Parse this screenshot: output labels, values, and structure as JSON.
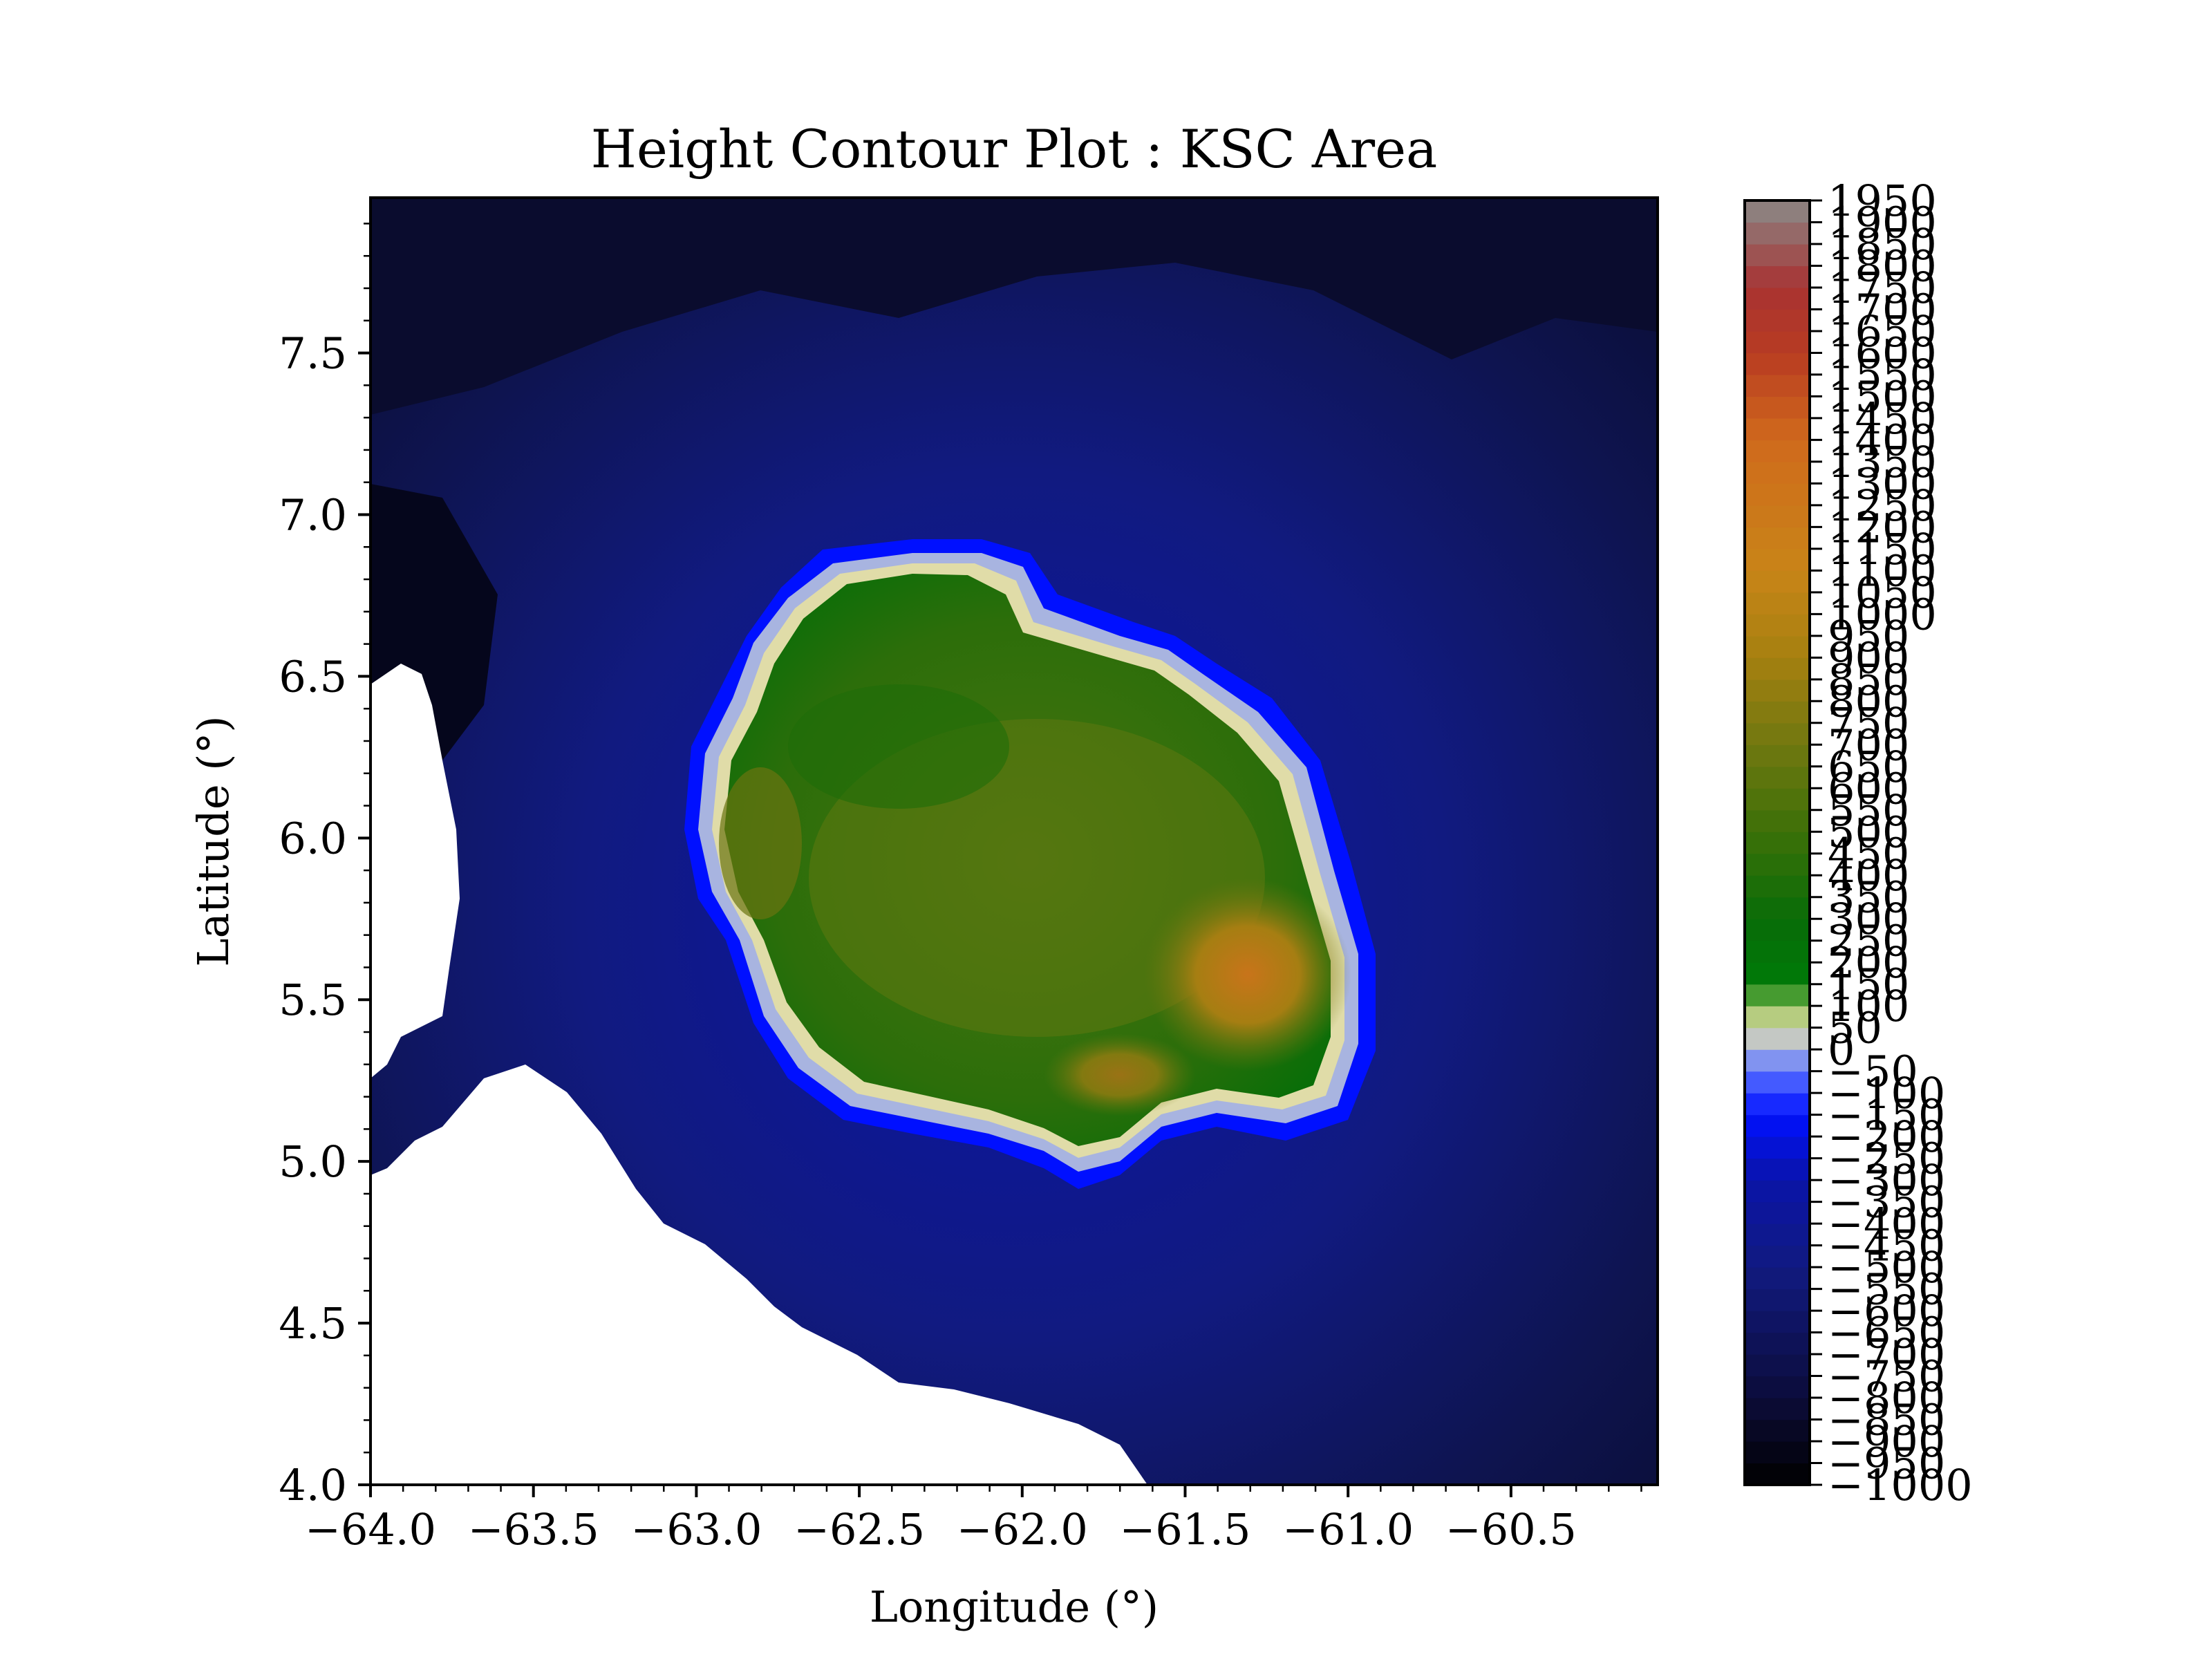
{
  "chart_data": {
    "type": "heatmap",
    "subtype": "filled-contour",
    "title": "Height Contour Plot : KSC Area",
    "xlabel": "Longitude (°)",
    "ylabel": "Latitude (°)",
    "xlim": [
      -64.0,
      -60.05
    ],
    "ylim": [
      4.0,
      7.98
    ],
    "x_ticks": [
      -64.0,
      -63.5,
      -63.0,
      -62.5,
      -62.0,
      -61.5,
      -61.0,
      -60.5
    ],
    "x_tick_labels": [
      "−64.0",
      "−63.5",
      "−63.0",
      "−62.5",
      "−62.0",
      "−61.5",
      "−61.0",
      "−60.5"
    ],
    "y_ticks": [
      4.0,
      4.5,
      5.0,
      5.5,
      6.0,
      6.5,
      7.0,
      7.5
    ],
    "y_tick_labels": [
      "4.0",
      "4.5",
      "5.0",
      "5.5",
      "6.0",
      "6.5",
      "7.0",
      "7.5"
    ],
    "colorbar": {
      "min": -1000,
      "max": 1950,
      "levels": [
        -1000,
        -950,
        -900,
        -850,
        -800,
        -750,
        -700,
        -650,
        -600,
        -550,
        -500,
        -450,
        -400,
        -350,
        -300,
        -250,
        -200,
        -150,
        -100,
        -50,
        0,
        50,
        100,
        150,
        200,
        250,
        300,
        350,
        400,
        450,
        500,
        550,
        600,
        650,
        700,
        750,
        800,
        850,
        900,
        950,
        1000,
        1050,
        1100,
        1150,
        1200,
        1250,
        1300,
        1350,
        1400,
        1450,
        1500,
        1550,
        1600,
        1650,
        1700,
        1750,
        1800,
        1850,
        1900,
        1950
      ],
      "tick_labels": [
        "−1000",
        "−950",
        "−900",
        "−850",
        "−800",
        "−750",
        "−700",
        "−650",
        "−600",
        "−550",
        "−500",
        "−450",
        "−400",
        "−350",
        "−300",
        "−250",
        "−200",
        "−150",
        "−100",
        "−50",
        "0",
        "50",
        "100",
        "150",
        "200",
        "250",
        "300",
        "350",
        "400",
        "450",
        "500",
        "550",
        "600",
        "650",
        "700",
        "750",
        "800",
        "850",
        "900",
        "950",
        "1000",
        "1050",
        "1100",
        "1150",
        "1200",
        "1250",
        "1300",
        "1350",
        "1400",
        "1450",
        "1500",
        "1550",
        "1600",
        "1650",
        "1700",
        "1750",
        "1800",
        "1850",
        "1900",
        "1950"
      ],
      "colormap_stops": [
        {
          "value": -1000,
          "color": "#000000"
        },
        {
          "value": -800,
          "color": "#0c0c3a"
        },
        {
          "value": -500,
          "color": "#111a80"
        },
        {
          "value": -300,
          "color": "#0a14a8"
        },
        {
          "value": -150,
          "color": "#0010ff"
        },
        {
          "value": -50,
          "color": "#5a72ff"
        },
        {
          "value": 0,
          "color": "#a8b4e0"
        },
        {
          "value": 50,
          "color": "#e0dca8"
        },
        {
          "value": 100,
          "color": "#8cbc58"
        },
        {
          "value": 150,
          "color": "#007a08"
        },
        {
          "value": 300,
          "color": "#086c08"
        },
        {
          "value": 500,
          "color": "#3c7008"
        },
        {
          "value": 700,
          "color": "#707810"
        },
        {
          "value": 900,
          "color": "#a68010"
        },
        {
          "value": 1100,
          "color": "#c88418"
        },
        {
          "value": 1400,
          "color": "#d06a1c"
        },
        {
          "value": 1600,
          "color": "#b83b22"
        },
        {
          "value": 1750,
          "color": "#a83232"
        },
        {
          "value": 1950,
          "color": "#8a8a88"
        }
      ]
    },
    "features": {
      "missing_data_color": "#ffffff",
      "island_center": [
        -62.0,
        5.95
      ],
      "peak_location": [
        -61.3,
        5.55
      ],
      "peak_value_approx": 950,
      "surrounding_ocean_range": [
        -800,
        -300
      ],
      "grid": false
    }
  }
}
